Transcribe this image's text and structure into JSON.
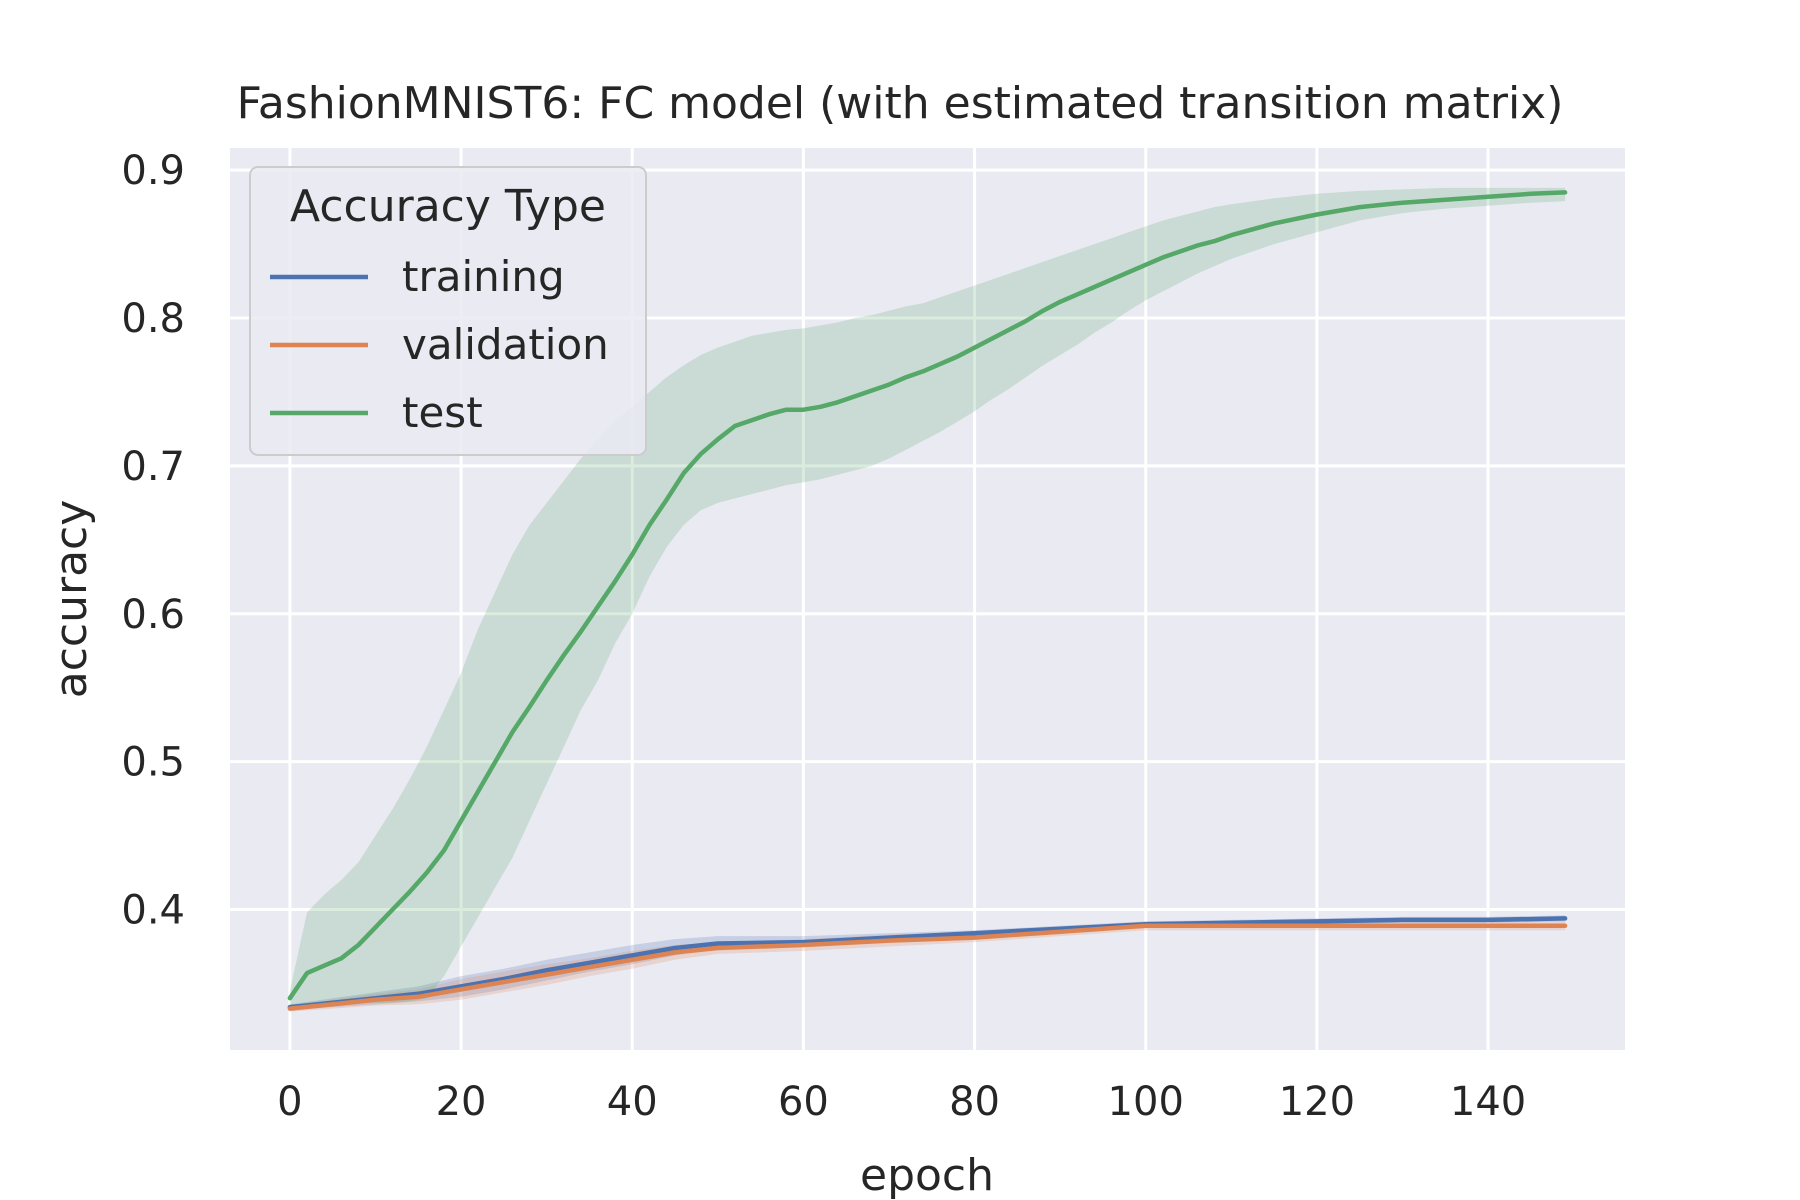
{
  "chart_data": {
    "type": "line",
    "title": "FashionMNIST6: FC model (with estimated transition matrix)",
    "xlabel": "epoch",
    "ylabel": "accuracy",
    "xlim": [
      -7,
      156
    ],
    "ylim": [
      0.305,
      0.915
    ],
    "xticks": [
      0,
      20,
      40,
      60,
      80,
      100,
      120,
      140
    ],
    "yticks": [
      0.4,
      0.5,
      0.6,
      0.7,
      0.8,
      0.9
    ],
    "xtick_labels": [
      "0",
      "20",
      "40",
      "60",
      "80",
      "100",
      "120",
      "140"
    ],
    "ytick_labels": [
      "0.4",
      "0.5",
      "0.6",
      "0.7",
      "0.8",
      "0.9"
    ],
    "grid": true,
    "legend": {
      "title": "Accuracy Type",
      "position": "top-left"
    },
    "series": [
      {
        "name": "training",
        "color": "#4c72b0",
        "x": [
          0,
          5,
          10,
          15,
          20,
          25,
          30,
          35,
          40,
          45,
          50,
          60,
          70,
          80,
          90,
          100,
          110,
          120,
          130,
          140,
          149
        ],
        "y": [
          0.334,
          0.337,
          0.34,
          0.343,
          0.348,
          0.353,
          0.359,
          0.364,
          0.369,
          0.374,
          0.377,
          0.378,
          0.381,
          0.384,
          0.387,
          0.39,
          0.391,
          0.392,
          0.393,
          0.393,
          0.394
        ],
        "lower": [
          0.332,
          0.334,
          0.336,
          0.338,
          0.341,
          0.346,
          0.352,
          0.358,
          0.363,
          0.369,
          0.373,
          0.375,
          0.378,
          0.382,
          0.385,
          0.388,
          0.389,
          0.39,
          0.391,
          0.391,
          0.392
        ],
        "upper": [
          0.336,
          0.34,
          0.344,
          0.348,
          0.355,
          0.36,
          0.366,
          0.371,
          0.376,
          0.38,
          0.382,
          0.382,
          0.384,
          0.386,
          0.389,
          0.392,
          0.393,
          0.394,
          0.395,
          0.395,
          0.396
        ]
      },
      {
        "name": "validation",
        "color": "#dd8452",
        "x": [
          0,
          5,
          10,
          15,
          20,
          25,
          30,
          35,
          40,
          45,
          50,
          60,
          70,
          80,
          90,
          100,
          110,
          120,
          130,
          140,
          149
        ],
        "y": [
          0.333,
          0.336,
          0.339,
          0.341,
          0.346,
          0.351,
          0.356,
          0.361,
          0.366,
          0.371,
          0.374,
          0.376,
          0.379,
          0.381,
          0.385,
          0.389,
          0.389,
          0.389,
          0.389,
          0.389,
          0.389
        ],
        "lower": [
          0.331,
          0.333,
          0.335,
          0.336,
          0.339,
          0.344,
          0.349,
          0.355,
          0.36,
          0.366,
          0.37,
          0.372,
          0.375,
          0.378,
          0.382,
          0.386,
          0.386,
          0.386,
          0.386,
          0.386,
          0.386
        ],
        "upper": [
          0.335,
          0.339,
          0.343,
          0.346,
          0.353,
          0.358,
          0.363,
          0.367,
          0.372,
          0.376,
          0.378,
          0.38,
          0.383,
          0.385,
          0.388,
          0.392,
          0.392,
          0.392,
          0.392,
          0.392,
          0.392
        ]
      },
      {
        "name": "test",
        "color": "#55a868",
        "x": [
          0,
          2,
          4,
          6,
          8,
          10,
          12,
          14,
          16,
          18,
          20,
          22,
          24,
          26,
          28,
          30,
          32,
          34,
          36,
          38,
          40,
          42,
          44,
          46,
          48,
          50,
          52,
          54,
          56,
          58,
          60,
          62,
          64,
          66,
          68,
          70,
          72,
          74,
          76,
          78,
          80,
          82,
          84,
          86,
          88,
          90,
          92,
          94,
          96,
          98,
          100,
          102,
          104,
          106,
          108,
          110,
          115,
          120,
          125,
          130,
          135,
          140,
          145,
          149
        ],
        "y": [
          0.34,
          0.357,
          0.362,
          0.367,
          0.376,
          0.388,
          0.4,
          0.412,
          0.425,
          0.44,
          0.46,
          0.48,
          0.5,
          0.52,
          0.537,
          0.555,
          0.572,
          0.588,
          0.605,
          0.622,
          0.64,
          0.66,
          0.677,
          0.695,
          0.708,
          0.718,
          0.727,
          0.731,
          0.735,
          0.738,
          0.738,
          0.74,
          0.743,
          0.747,
          0.751,
          0.755,
          0.76,
          0.764,
          0.769,
          0.774,
          0.78,
          0.786,
          0.792,
          0.798,
          0.805,
          0.811,
          0.816,
          0.821,
          0.826,
          0.831,
          0.836,
          0.841,
          0.845,
          0.849,
          0.852,
          0.856,
          0.864,
          0.87,
          0.875,
          0.878,
          0.88,
          0.882,
          0.884,
          0.885
        ],
        "lower": [
          0.334,
          0.335,
          0.336,
          0.336,
          0.337,
          0.337,
          0.337,
          0.338,
          0.34,
          0.355,
          0.375,
          0.395,
          0.415,
          0.435,
          0.46,
          0.485,
          0.51,
          0.535,
          0.555,
          0.58,
          0.6,
          0.625,
          0.645,
          0.66,
          0.67,
          0.675,
          0.678,
          0.681,
          0.684,
          0.687,
          0.689,
          0.691,
          0.694,
          0.697,
          0.7,
          0.705,
          0.711,
          0.717,
          0.723,
          0.73,
          0.737,
          0.745,
          0.752,
          0.76,
          0.768,
          0.775,
          0.782,
          0.79,
          0.797,
          0.805,
          0.812,
          0.818,
          0.824,
          0.83,
          0.835,
          0.84,
          0.85,
          0.858,
          0.866,
          0.871,
          0.874,
          0.876,
          0.878,
          0.879
        ],
        "upper": [
          0.345,
          0.398,
          0.41,
          0.42,
          0.432,
          0.45,
          0.468,
          0.488,
          0.51,
          0.535,
          0.56,
          0.59,
          0.615,
          0.64,
          0.66,
          0.675,
          0.69,
          0.705,
          0.718,
          0.73,
          0.74,
          0.75,
          0.76,
          0.768,
          0.775,
          0.78,
          0.784,
          0.788,
          0.79,
          0.792,
          0.793,
          0.795,
          0.797,
          0.8,
          0.802,
          0.805,
          0.808,
          0.81,
          0.814,
          0.818,
          0.822,
          0.826,
          0.83,
          0.834,
          0.838,
          0.842,
          0.846,
          0.85,
          0.854,
          0.858,
          0.862,
          0.866,
          0.869,
          0.872,
          0.875,
          0.877,
          0.881,
          0.884,
          0.886,
          0.887,
          0.888,
          0.888,
          0.888,
          0.888
        ]
      }
    ]
  }
}
